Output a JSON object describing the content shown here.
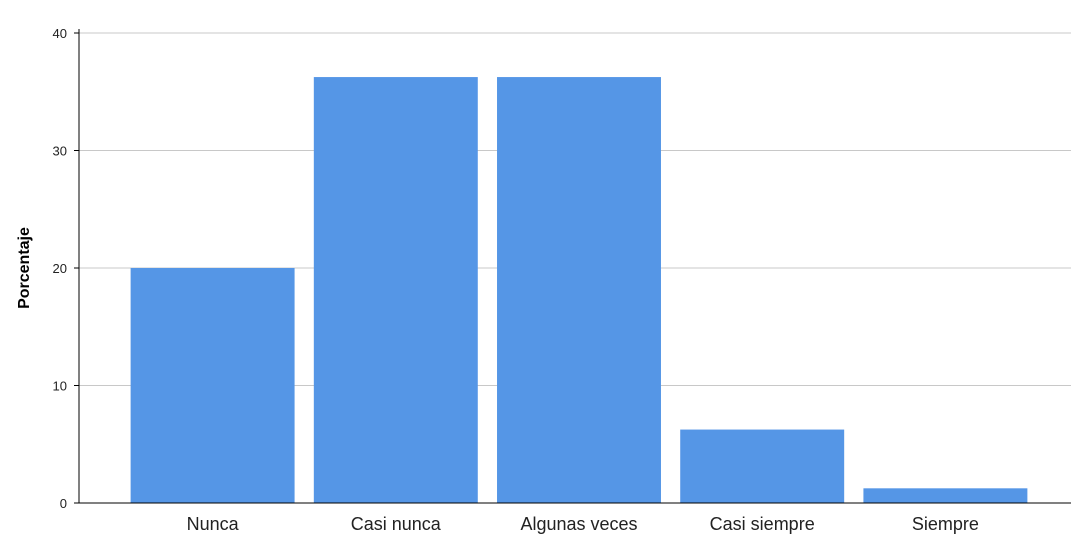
{
  "chart_data": {
    "type": "bar",
    "title": "",
    "xlabel": "",
    "ylabel": "Porcentaje",
    "categories": [
      "Nunca",
      "Casi nunca",
      "Algunas veces",
      "Casi siempre",
      "Siempre"
    ],
    "values": [
      20.0,
      36.25,
      36.25,
      6.25,
      1.25
    ],
    "ylim": [
      0,
      40
    ],
    "yticks": [
      0,
      10,
      20,
      30,
      40
    ],
    "grid": true,
    "colors": {
      "bar": "#5596e6",
      "grid": "#c8c8c8",
      "axis": "#000000"
    }
  }
}
